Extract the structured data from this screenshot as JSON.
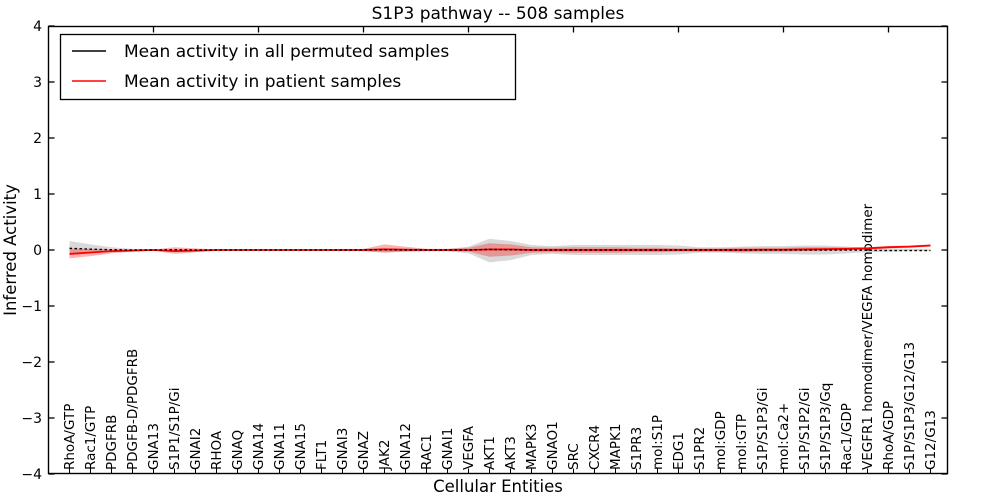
{
  "chart_data": {
    "type": "line",
    "title": "S1P3 pathway -- 508 samples",
    "xlabel": "Cellular Entities",
    "ylabel": "Inferred Activity",
    "ylim": [
      -4,
      4
    ],
    "yticks": [
      4,
      3,
      2,
      1,
      0,
      -1,
      -2,
      -3,
      -4
    ],
    "ytick_labels": [
      "4",
      "3",
      "2",
      "1",
      "0",
      "−1",
      "−2",
      "−3",
      "−4"
    ],
    "grid": false,
    "legend_position": "upper left",
    "frame_color": "#000000",
    "background_color": "#ffffff",
    "categories": [
      "RhoA/GTP",
      "Rac1/GTP",
      "PDGFRB",
      "PDGFB-D/PDGFRB",
      "GNA13",
      "S1P1/S1P/Gi",
      "GNAI2",
      "RHOA",
      "GNAQ",
      "GNA14",
      "GNA11",
      "GNA15",
      "FLT1",
      "GNAI3",
      "GNAZ",
      "JAK2",
      "GNA12",
      "RAC1",
      "GNAI1",
      "VEGFA",
      "AKT1",
      "AKT3",
      "MAPK3",
      "GNAO1",
      "SRC",
      "CXCR4",
      "MAPK1",
      "S1PR3",
      "mol:S1P",
      "EDG1",
      "S1PR2",
      "mol:GDP",
      "mol:GTP",
      "S1P/S1P3/Gi",
      "mol:Ca2+",
      "S1P/S1P2/Gi",
      "S1P/S1P3/Gq",
      "Rac1/GDP",
      "VEGFR1 homodimer/VEGFA homodimer",
      "RhoA/GDP",
      "S1P/S1P3/G12/G13",
      "G12/G13"
    ],
    "top_tick_category_indices": [
      4,
      9,
      14,
      19,
      24,
      29,
      34,
      39
    ],
    "series": [
      {
        "name": "Mean activity in all permuted samples",
        "color": "#000000",
        "line_style": "dashed",
        "values": [
          0.03,
          0.015,
          0.005,
          0,
          0,
          0.005,
          0,
          0,
          0,
          0,
          0,
          0,
          0,
          0,
          0,
          0.005,
          0,
          0,
          0,
          0,
          0.01,
          0.005,
          0,
          0,
          0,
          0,
          0,
          0,
          0,
          0,
          0,
          0,
          0,
          0,
          0,
          0,
          0,
          0,
          -0.005,
          -0.01,
          -0.01,
          -0.01
        ]
      },
      {
        "name": "Mean activity in patient samples",
        "color": "#ff0000",
        "line_style": "solid",
        "values": [
          -0.07,
          -0.045,
          -0.02,
          -0.01,
          0,
          -0.02,
          -0.01,
          0,
          0,
          0,
          0,
          0,
          0,
          0,
          0,
          0.01,
          0.005,
          0,
          0,
          0,
          0.01,
          0.01,
          0,
          0,
          0,
          0,
          0,
          0,
          0,
          0,
          0,
          0,
          0,
          0.005,
          0.005,
          0.01,
          0.015,
          0.02,
          0.03,
          0.05,
          0.06,
          0.08
        ]
      }
    ],
    "bands": [
      {
        "name": "permuted-samples-spread",
        "color": "#aaaaaa",
        "opacity": 0.45,
        "upper": [
          0.16,
          0.1,
          0.05,
          0.02,
          0.01,
          0.02,
          0.01,
          0.01,
          0.01,
          0.01,
          0.01,
          0.01,
          0.01,
          0.02,
          0.02,
          0.04,
          0.03,
          0.02,
          0.02,
          0.06,
          0.2,
          0.16,
          0.09,
          0.07,
          0.09,
          0.09,
          0.09,
          0.09,
          0.09,
          0.08,
          0.05,
          0.05,
          0.06,
          0.07,
          0.07,
          0.08,
          0.08,
          0.06,
          0.04,
          0.03,
          0.02,
          0.015
        ],
        "lower": [
          -0.06,
          -0.04,
          -0.02,
          -0.01,
          -0.01,
          -0.02,
          -0.01,
          -0.01,
          -0.01,
          -0.01,
          -0.01,
          -0.01,
          -0.01,
          -0.02,
          -0.02,
          -0.04,
          -0.03,
          -0.02,
          -0.02,
          -0.06,
          -0.22,
          -0.18,
          -0.09,
          -0.07,
          -0.09,
          -0.09,
          -0.09,
          -0.09,
          -0.09,
          -0.08,
          -0.05,
          -0.05,
          -0.06,
          -0.07,
          -0.07,
          -0.08,
          -0.08,
          -0.06,
          -0.04,
          -0.03,
          -0.02,
          -0.015
        ]
      },
      {
        "name": "patient-samples-spread",
        "color": "#ff0000",
        "opacity": 0.3,
        "upper": [
          0.03,
          0.02,
          0.01,
          0.01,
          0.01,
          0.05,
          0.03,
          0.01,
          0.01,
          0.01,
          0.01,
          0.01,
          0.01,
          0.01,
          0.02,
          0.1,
          0.06,
          0.02,
          0.02,
          0.04,
          0.12,
          0.1,
          0.05,
          0.04,
          0.05,
          0.05,
          0.05,
          0.04,
          0.04,
          0.03,
          0.03,
          0.03,
          0.04,
          0.04,
          0.04,
          0.05,
          0.05,
          0.05,
          0.05,
          0.07,
          0.08,
          0.1
        ],
        "lower": [
          -0.15,
          -0.11,
          -0.06,
          -0.03,
          -0.01,
          -0.07,
          -0.04,
          -0.01,
          -0.01,
          -0.01,
          -0.01,
          -0.01,
          -0.01,
          -0.01,
          -0.02,
          -0.05,
          -0.03,
          -0.02,
          -0.02,
          -0.03,
          -0.12,
          -0.1,
          -0.05,
          -0.04,
          -0.05,
          -0.05,
          -0.05,
          -0.04,
          -0.04,
          -0.03,
          -0.03,
          -0.03,
          -0.04,
          -0.03,
          -0.03,
          -0.02,
          -0.02,
          -0.01,
          0.01,
          0.03,
          0.04,
          0.06
        ]
      }
    ]
  }
}
